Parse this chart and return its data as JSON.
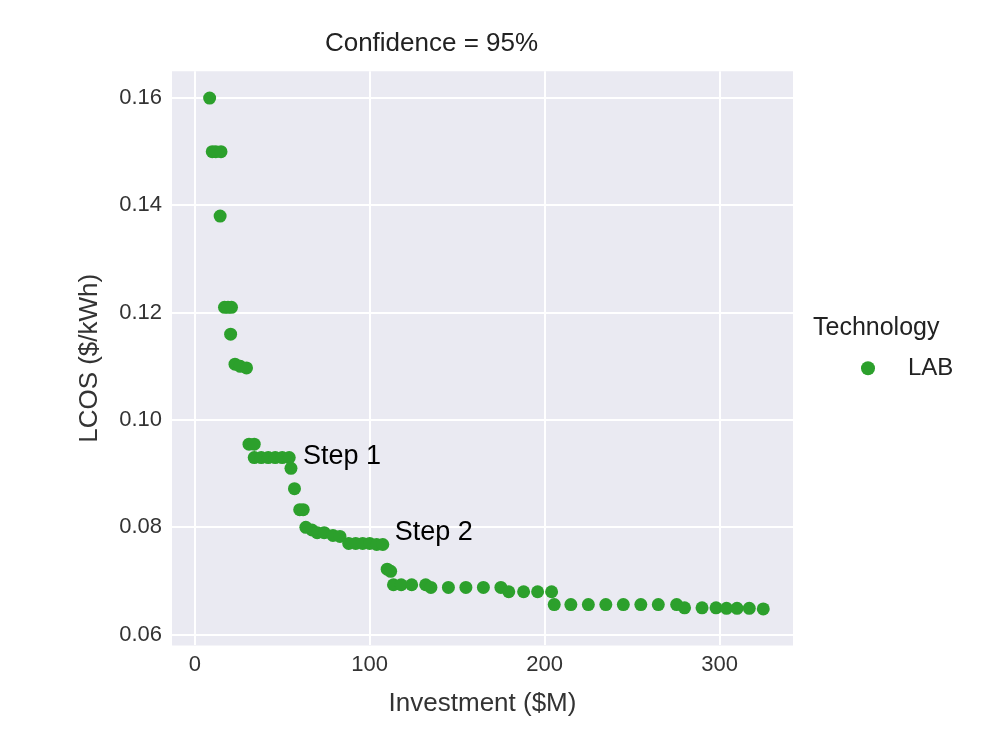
{
  "chart_data": {
    "type": "scatter",
    "title": "Confidence = 95%",
    "xlabel": "Investment ($M)",
    "ylabel": "LCOS ($/kWh)",
    "legend_title": "Technology",
    "legend": "right",
    "grid": true,
    "marker": "circle",
    "xlim": [
      -13,
      342
    ],
    "ylim": [
      0.058,
      0.165
    ],
    "xticks": [
      0,
      100,
      200,
      300
    ],
    "yticks": [
      {
        "value": 0.06,
        "label": "0.06"
      },
      {
        "value": 0.08,
        "label": "0.08"
      },
      {
        "value": 0.1,
        "label": "0.10"
      },
      {
        "value": 0.12,
        "label": "0.12"
      },
      {
        "value": 0.14,
        "label": "0.14"
      },
      {
        "value": 0.16,
        "label": "0.16"
      }
    ],
    "series": [
      {
        "name": "LAB",
        "color": "#2ca02c",
        "x": [
          8.5,
          10,
          12,
          15,
          14.5,
          17,
          19,
          21,
          20.5,
          23,
          26,
          29.6,
          31,
          34,
          34,
          38,
          42,
          46,
          50,
          54,
          55,
          57,
          60,
          62,
          63.5,
          67,
          70,
          74,
          79,
          83,
          88,
          92,
          96,
          100,
          104,
          107.5,
          110,
          112,
          113.6,
          118,
          124,
          132,
          135,
          145,
          155,
          165,
          175,
          179.5,
          188,
          196,
          204,
          205.5,
          215,
          225,
          235,
          245,
          255,
          265,
          275.5,
          280,
          290,
          298,
          304,
          310,
          317,
          325
        ],
        "values": [
          0.16,
          0.15,
          0.15,
          0.15,
          0.138,
          0.121,
          0.121,
          0.121,
          0.116,
          0.1104,
          0.11,
          0.1097,
          0.0955,
          0.0955,
          0.093,
          0.093,
          0.093,
          0.093,
          0.093,
          0.093,
          0.091,
          0.0872,
          0.0833,
          0.0833,
          0.08,
          0.0795,
          0.079,
          0.079,
          0.0785,
          0.0783,
          0.077,
          0.077,
          0.077,
          0.077,
          0.0768,
          0.0768,
          0.0722,
          0.0718,
          0.0693,
          0.0693,
          0.0693,
          0.0693,
          0.0688,
          0.0688,
          0.0688,
          0.0688,
          0.0688,
          0.068,
          0.068,
          0.068,
          0.068,
          0.0656,
          0.0656,
          0.0656,
          0.0656,
          0.0656,
          0.0656,
          0.0656,
          0.0656,
          0.065,
          0.065,
          0.065,
          0.0649,
          0.0649,
          0.0649,
          0.0648
        ]
      }
    ],
    "annotations": [
      {
        "text": "Step 1",
        "x": 55,
        "y": 0.091
      },
      {
        "text": "Step 2",
        "x": 107.5,
        "y": 0.0768
      }
    ]
  }
}
